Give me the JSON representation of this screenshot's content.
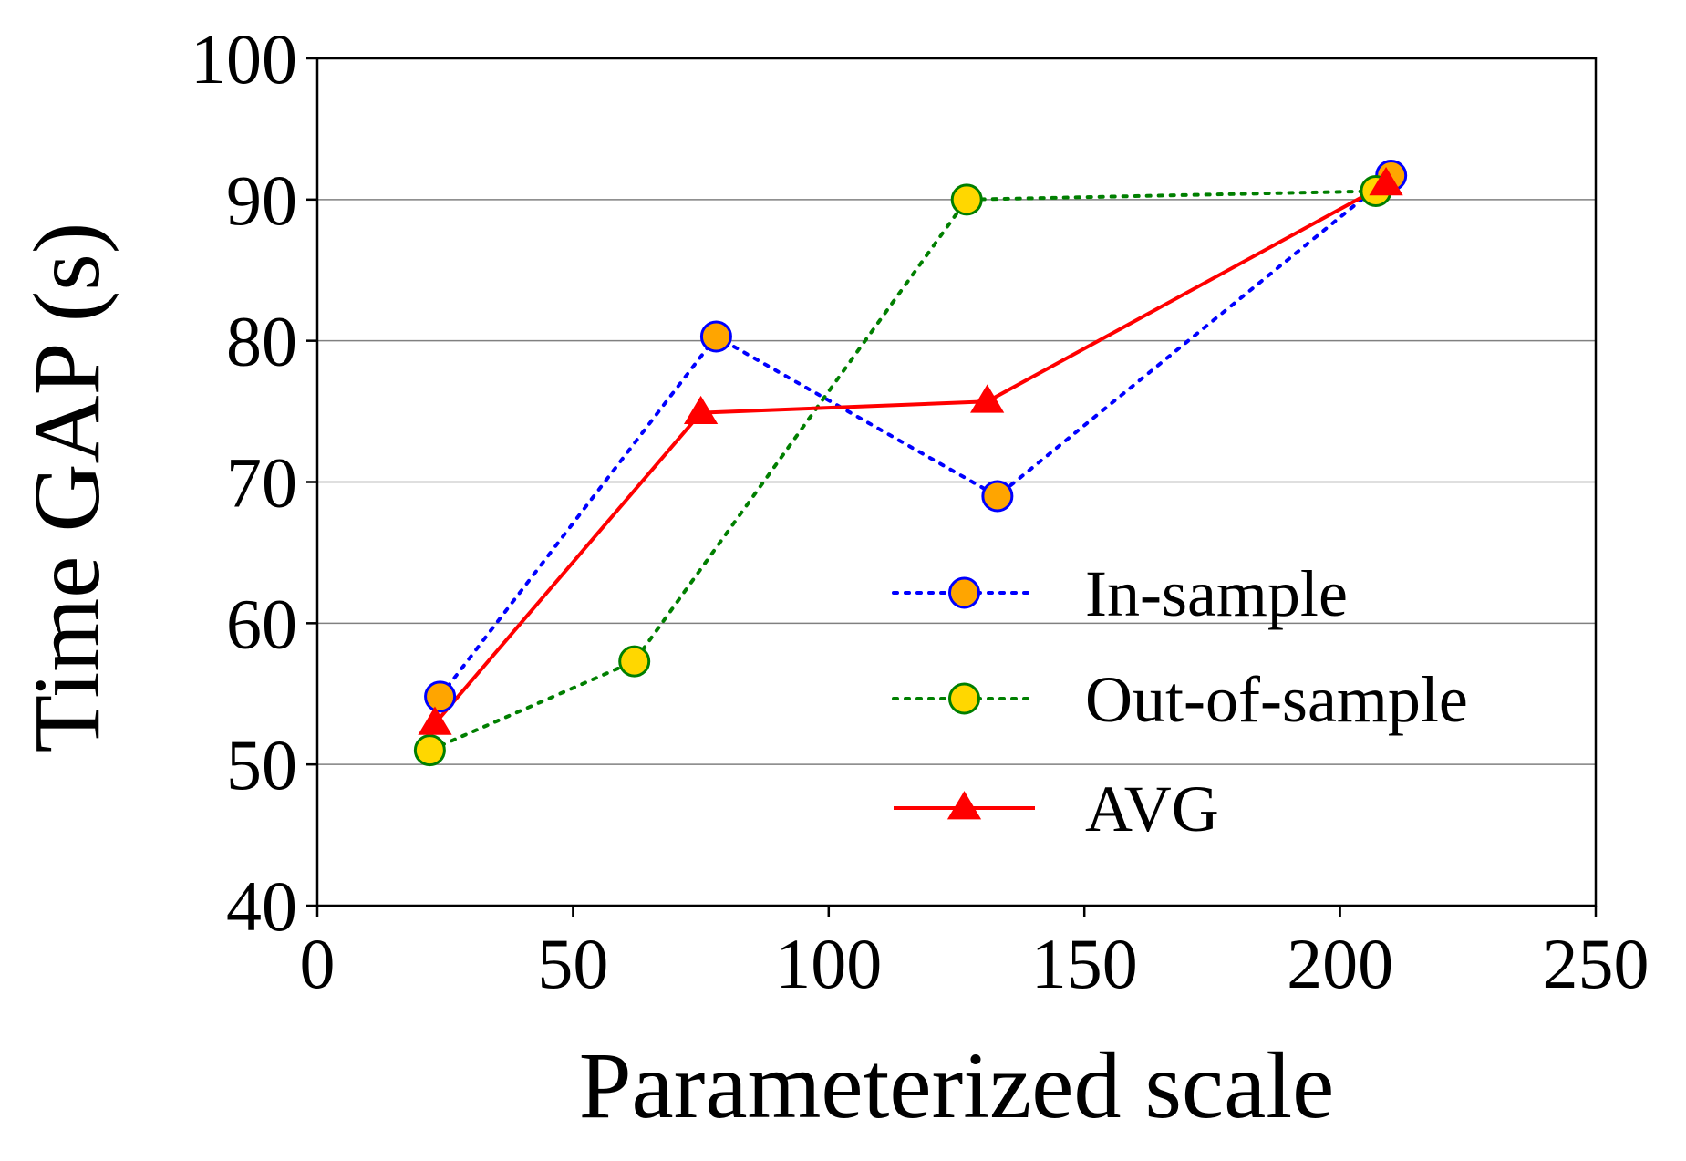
{
  "chart_data": {
    "type": "line",
    "title": "",
    "xlabel": "Parameterized scale",
    "ylabel": "Time GAP (s)",
    "xlim": [
      0,
      250
    ],
    "ylim": [
      40,
      100
    ],
    "xticks": [
      0,
      50,
      100,
      150,
      200,
      250
    ],
    "yticks": [
      40,
      50,
      60,
      70,
      80,
      90,
      100
    ],
    "xtick_labels": [
      "0",
      "50",
      "100",
      "150",
      "200",
      "250"
    ],
    "ytick_labels": [
      "40",
      "50",
      "60",
      "70",
      "80",
      "90",
      "100"
    ],
    "grid": "horizontal",
    "legend_position": "lower-right",
    "series": [
      {
        "name": "In-sample",
        "x": [
          24,
          78,
          133,
          210
        ],
        "y": [
          54.8,
          80.3,
          69.0,
          91.7
        ],
        "line_color": "#0000ff",
        "line_style": "dotted",
        "marker": "circle",
        "marker_face": "#ffa500",
        "marker_edge": "#0000ff"
      },
      {
        "name": "Out-of-sample",
        "x": [
          22,
          62,
          127,
          207
        ],
        "y": [
          51.0,
          57.3,
          90.0,
          90.6
        ],
        "line_color": "#007f00",
        "line_style": "dotted",
        "marker": "circle",
        "marker_face": "#ffd700",
        "marker_edge": "#007f00"
      },
      {
        "name": "AVG",
        "x": [
          23,
          75,
          131,
          209
        ],
        "y": [
          52.9,
          74.9,
          75.7,
          91.1
        ],
        "line_color": "#ff0000",
        "line_style": "solid",
        "marker": "triangle",
        "marker_face": "#ff0000",
        "marker_edge": "#ff0000"
      }
    ]
  }
}
